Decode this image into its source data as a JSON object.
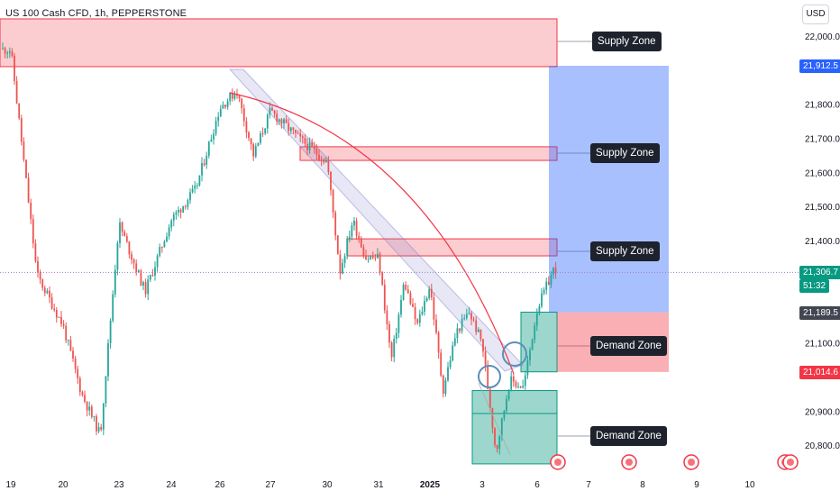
{
  "header": {
    "title": "US 100 Cash CFD, 1h, PEPPERSTONE",
    "currency": "USD"
  },
  "colors": {
    "up": "#26a69a",
    "down": "#ef5350",
    "supply": "#f23645",
    "demand": "#089981",
    "target": "#2962ff",
    "label_bg": "#1e222d"
  },
  "chart_data": {
    "type": "candlestick",
    "title": "US 100 Cash CFD, 1h, PEPPERSTONE",
    "xlabel": "",
    "ylabel": "",
    "ylim": [
      20700,
      22200
    ],
    "grid": false,
    "x_ticks": [
      "19",
      "20",
      "23",
      "24",
      "26",
      "27",
      "30",
      "31",
      "2025",
      "3",
      "6",
      "7",
      "8",
      "9",
      "10"
    ],
    "y_ticks": [
      "22,000.0",
      "21,800.0",
      "21,700.0",
      "21,600.0",
      "21,500.0",
      "21,400.0",
      "21,100.0",
      "20,900.0",
      "20,800.0"
    ],
    "price_path": [
      [
        "19",
        21960
      ],
      [
        "19",
        21300
      ],
      [
        "20",
        21150
      ],
      [
        "20",
        20950
      ],
      [
        "20",
        20830
      ],
      [
        "23",
        21450
      ],
      [
        "23",
        21250
      ],
      [
        "24",
        21460
      ],
      [
        "24",
        21550
      ],
      [
        "26",
        21790
      ],
      [
        "26",
        21840
      ],
      [
        "26",
        21650
      ],
      [
        "27",
        21780
      ],
      [
        "27",
        21700
      ],
      [
        "30",
        21630
      ],
      [
        "30",
        21310
      ],
      [
        "30",
        21460
      ],
      [
        "30",
        21350
      ],
      [
        "31",
        21350
      ],
      [
        "31",
        21050
      ],
      [
        "31",
        21280
      ],
      [
        "31",
        21150
      ],
      [
        "2025",
        21270
      ],
      [
        "2025",
        20960
      ],
      [
        "2025",
        21130
      ],
      [
        "2025",
        21190
      ],
      [
        "3",
        21100
      ],
      [
        "3",
        20780
      ],
      [
        "3",
        20990
      ],
      [
        "3",
        20970
      ],
      [
        "6",
        21200
      ],
      [
        "6",
        21320
      ],
      [
        "6",
        21307
      ]
    ],
    "price_labels": [
      {
        "value": 21912.5,
        "text": "21,912.5",
        "color": "#2962ff"
      },
      {
        "value": 21306.7,
        "text": "21,306.7",
        "color": "#089981"
      },
      {
        "value": 21189.5,
        "text": "21,189.5",
        "color": "#434651"
      },
      {
        "value": 21014.6,
        "text": "21,014.6",
        "color": "#f23645"
      }
    ],
    "countdown": "51:32",
    "zones": [
      {
        "kind": "supply",
        "label": "Supply Zone",
        "low": 21910,
        "high": 22050
      },
      {
        "kind": "supply",
        "label": "Supply Zone",
        "low": 21635,
        "high": 21675
      },
      {
        "kind": "supply",
        "label": "Supply Zone",
        "low": 21355,
        "high": 21405
      },
      {
        "kind": "demand",
        "label": "Demand Zone",
        "low": 21015,
        "high": 21190
      },
      {
        "kind": "demand",
        "label": "Demand Zone",
        "low": 20745,
        "high": 20960
      }
    ],
    "position": {
      "entry": 21189.5,
      "target": 21912.5,
      "stop": 21014.6
    }
  }
}
